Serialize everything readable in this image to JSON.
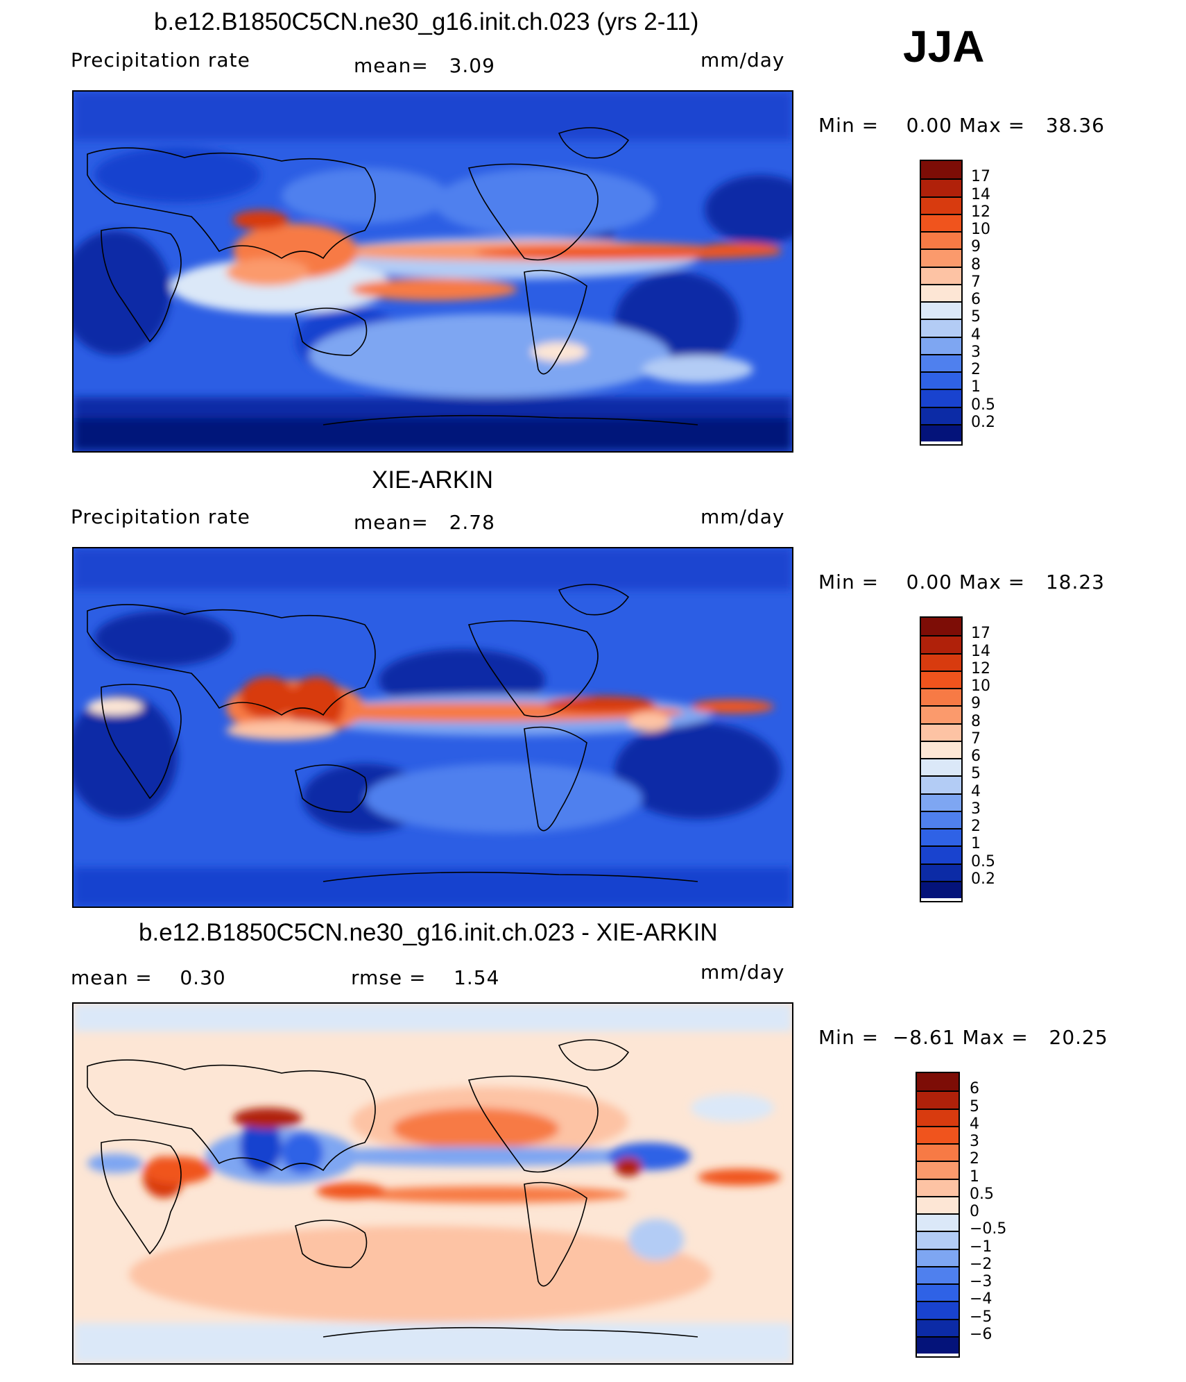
{
  "season": "JJA",
  "panels": [
    {
      "id": "model",
      "title": "b.e12.B1850C5CN.ne30_g16.init.ch.023 (yrs 2-11)",
      "left_label": "Precipitation rate",
      "center_label": "mean=   3.09",
      "units": "mm/day",
      "minmax": "Min =    0.00 Max =   38.36",
      "legend": {
        "labels": [
          "17",
          "14",
          "12",
          "10",
          "9",
          "8",
          "7",
          "6",
          "5",
          "4",
          "3",
          "2",
          "1",
          "0.5",
          "0.2"
        ],
        "colors": [
          "#7d0d06",
          "#b0210a",
          "#d83b0f",
          "#f0541d",
          "#f77a45",
          "#fb9a6c",
          "#fdc3a4",
          "#fde6d5",
          "#dbe8f8",
          "#b3ccf5",
          "#7ea6f2",
          "#4f80ee",
          "#2f62e6",
          "#1943cf",
          "#0c2ba6",
          "#04137a"
        ]
      },
      "chart_data": {
        "type": "heatmap",
        "title": "b.e12.B1850C5CN.ne30_g16.init.ch.023 (yrs 2-11)",
        "variable": "Precipitation rate",
        "units": "mm/day",
        "mean": 3.09,
        "min": 0.0,
        "max": 38.36,
        "levels": [
          0.2,
          0.5,
          1,
          2,
          3,
          4,
          5,
          6,
          7,
          8,
          9,
          10,
          12,
          14,
          17
        ]
      }
    },
    {
      "id": "obs",
      "title": "XIE-ARKIN",
      "left_label": "Precipitation rate",
      "center_label": "mean=   2.78",
      "units": "mm/day",
      "minmax": "Min =    0.00 Max =   18.23",
      "legend": {
        "labels": [
          "17",
          "14",
          "12",
          "10",
          "9",
          "8",
          "7",
          "6",
          "5",
          "4",
          "3",
          "2",
          "1",
          "0.5",
          "0.2"
        ],
        "colors": [
          "#7d0d06",
          "#b0210a",
          "#d83b0f",
          "#f0541d",
          "#f77a45",
          "#fb9a6c",
          "#fdc3a4",
          "#fde6d5",
          "#dbe8f8",
          "#b3ccf5",
          "#7ea6f2",
          "#4f80ee",
          "#2f62e6",
          "#1943cf",
          "#0c2ba6",
          "#04137a"
        ]
      },
      "chart_data": {
        "type": "heatmap",
        "title": "XIE-ARKIN",
        "variable": "Precipitation rate",
        "units": "mm/day",
        "mean": 2.78,
        "min": 0.0,
        "max": 18.23,
        "levels": [
          0.2,
          0.5,
          1,
          2,
          3,
          4,
          5,
          6,
          7,
          8,
          9,
          10,
          12,
          14,
          17
        ]
      }
    },
    {
      "id": "diff",
      "title": "b.e12.B1850C5CN.ne30_g16.init.ch.023 - XIE-ARKIN",
      "left_label": "mean =    0.30",
      "center_label": "rmse =    1.54",
      "units": "mm/day",
      "minmax": "Min =  −8.61 Max =   20.25",
      "legend": {
        "labels": [
          "6",
          "5",
          "4",
          "3",
          "2",
          "1",
          "0.5",
          "0",
          "−0.5",
          "−1",
          "−2",
          "−3",
          "−4",
          "−5",
          "−6"
        ],
        "colors": [
          "#7d0d06",
          "#b0210a",
          "#d83b0f",
          "#f0541d",
          "#f77a45",
          "#fb9a6c",
          "#fdc3a4",
          "#fde6d5",
          "#dbe8f8",
          "#b3ccf5",
          "#7ea6f2",
          "#4f80ee",
          "#2f62e6",
          "#1943cf",
          "#0c2ba6",
          "#04137a"
        ]
      },
      "chart_data": {
        "type": "heatmap",
        "title": "b.e12.B1850C5CN.ne30_g16.init.ch.023 - XIE-ARKIN",
        "units": "mm/day",
        "mean": 0.3,
        "rmse": 1.54,
        "min": -8.61,
        "max": 20.25,
        "levels": [
          -6,
          -5,
          -4,
          -3,
          -2,
          -1,
          -0.5,
          0,
          0.5,
          1,
          2,
          3,
          4,
          5,
          6
        ]
      }
    }
  ]
}
